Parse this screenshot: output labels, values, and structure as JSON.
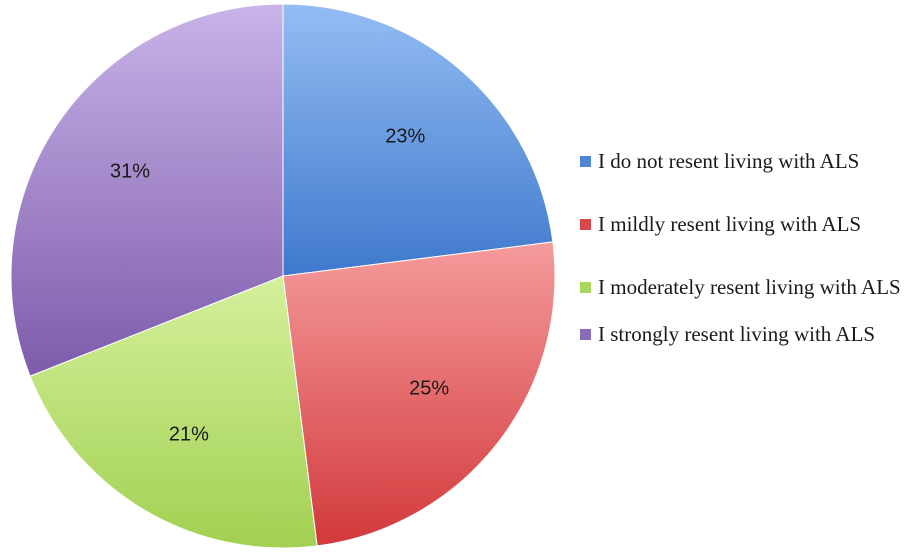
{
  "chart_data": {
    "type": "pie",
    "slices": [
      {
        "label": "I do not resent living with ALS",
        "value": 23,
        "display": "23%",
        "color": "#4f86d4"
      },
      {
        "label": "I mildly resent living with ALS",
        "value": 25,
        "display": "25%",
        "color": "#d9474a"
      },
      {
        "label": "I moderately resent living with ALS",
        "value": 21,
        "display": "21%",
        "color": "#a9d65c"
      },
      {
        "label": "I strongly resent living with ALS",
        "value": 31,
        "display": "31%",
        "color": "#8a6bb8"
      }
    ],
    "legend_position": "right",
    "start_angle": "12 o'clock, clockwise"
  },
  "legend": {
    "items": [
      {
        "label": "I do not resent living with ALS",
        "color": "#4f86d4"
      },
      {
        "label": "I mildly resent living with ALS",
        "color": "#d9474a"
      },
      {
        "label": "I moderately resent living with ALS",
        "color": "#a9d65c"
      },
      {
        "label": "I strongly resent living with ALS",
        "color": "#8a6bb8"
      }
    ]
  }
}
